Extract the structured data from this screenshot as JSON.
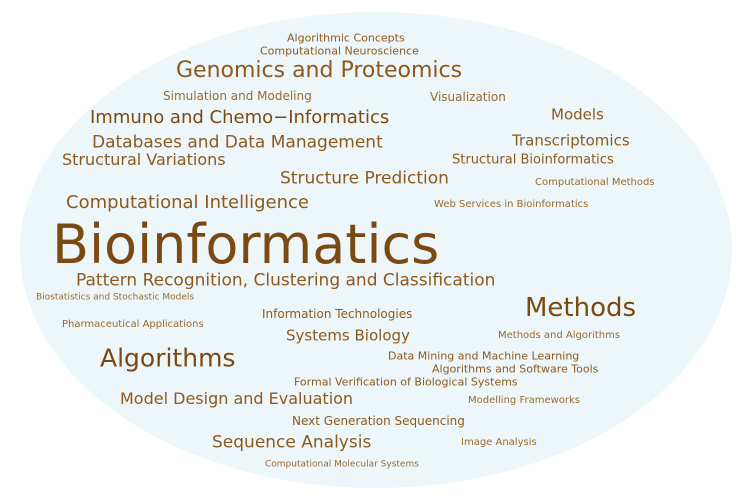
{
  "colors": {
    "background": "#ffffff",
    "ellipse": "#edf6f9",
    "dark": "#7b4a12",
    "mid": "#8c5a1e",
    "light": "#9a6a30"
  },
  "words": [
    {
      "text": "Algorithmic Concepts",
      "weight": "small",
      "color": "mid"
    },
    {
      "text": "Computational Neuroscience",
      "weight": "small",
      "color": "mid"
    },
    {
      "text": "Genomics and Proteomics",
      "weight": "large",
      "color": "mid"
    },
    {
      "text": "Simulation and Modeling",
      "weight": "small",
      "color": "light"
    },
    {
      "text": "Visualization",
      "weight": "small",
      "color": "light"
    },
    {
      "text": "Immuno and Chemo−Informatics",
      "weight": "medium",
      "color": "dark"
    },
    {
      "text": "Models",
      "weight": "medium",
      "color": "mid"
    },
    {
      "text": "Databases and Data Management",
      "weight": "medium",
      "color": "mid"
    },
    {
      "text": "Transcriptomics",
      "weight": "medium",
      "color": "mid"
    },
    {
      "text": "Structural Variations",
      "weight": "medium",
      "color": "mid"
    },
    {
      "text": "Structural Bioinformatics",
      "weight": "small",
      "color": "mid"
    },
    {
      "text": "Structure Prediction",
      "weight": "medium",
      "color": "mid"
    },
    {
      "text": "Computational Methods",
      "weight": "small",
      "color": "light"
    },
    {
      "text": "Computational Intelligence",
      "weight": "medium",
      "color": "mid"
    },
    {
      "text": "Web Services in Bioinformatics",
      "weight": "small",
      "color": "light"
    },
    {
      "text": "Bioinformatics",
      "weight": "huge",
      "color": "dark"
    },
    {
      "text": "Pattern Recognition, Clustering and Classification",
      "weight": "medium",
      "color": "mid"
    },
    {
      "text": "Biostatistics and Stochastic Models",
      "weight": "small",
      "color": "light"
    },
    {
      "text": "Methods",
      "weight": "large",
      "color": "dark"
    },
    {
      "text": "Information Technologies",
      "weight": "small",
      "color": "mid"
    },
    {
      "text": "Pharmaceutical Applications",
      "weight": "small",
      "color": "light"
    },
    {
      "text": "Systems Biology",
      "weight": "medium",
      "color": "mid"
    },
    {
      "text": "Methods and Algorithms",
      "weight": "small",
      "color": "light"
    },
    {
      "text": "Algorithms",
      "weight": "large",
      "color": "dark"
    },
    {
      "text": "Data Mining and Machine Learning",
      "weight": "small",
      "color": "mid"
    },
    {
      "text": "Algorithms and Software Tools",
      "weight": "small",
      "color": "mid"
    },
    {
      "text": "Formal Verification of Biological Systems",
      "weight": "small",
      "color": "mid"
    },
    {
      "text": "Model Design and Evaluation",
      "weight": "medium",
      "color": "mid"
    },
    {
      "text": "Modelling Frameworks",
      "weight": "small",
      "color": "light"
    },
    {
      "text": "Next Generation Sequencing",
      "weight": "small",
      "color": "mid"
    },
    {
      "text": "Sequence Analysis",
      "weight": "medium",
      "color": "mid"
    },
    {
      "text": "Image Analysis",
      "weight": "small",
      "color": "light"
    },
    {
      "text": "Computational Molecular Systems",
      "weight": "small",
      "color": "light"
    }
  ]
}
